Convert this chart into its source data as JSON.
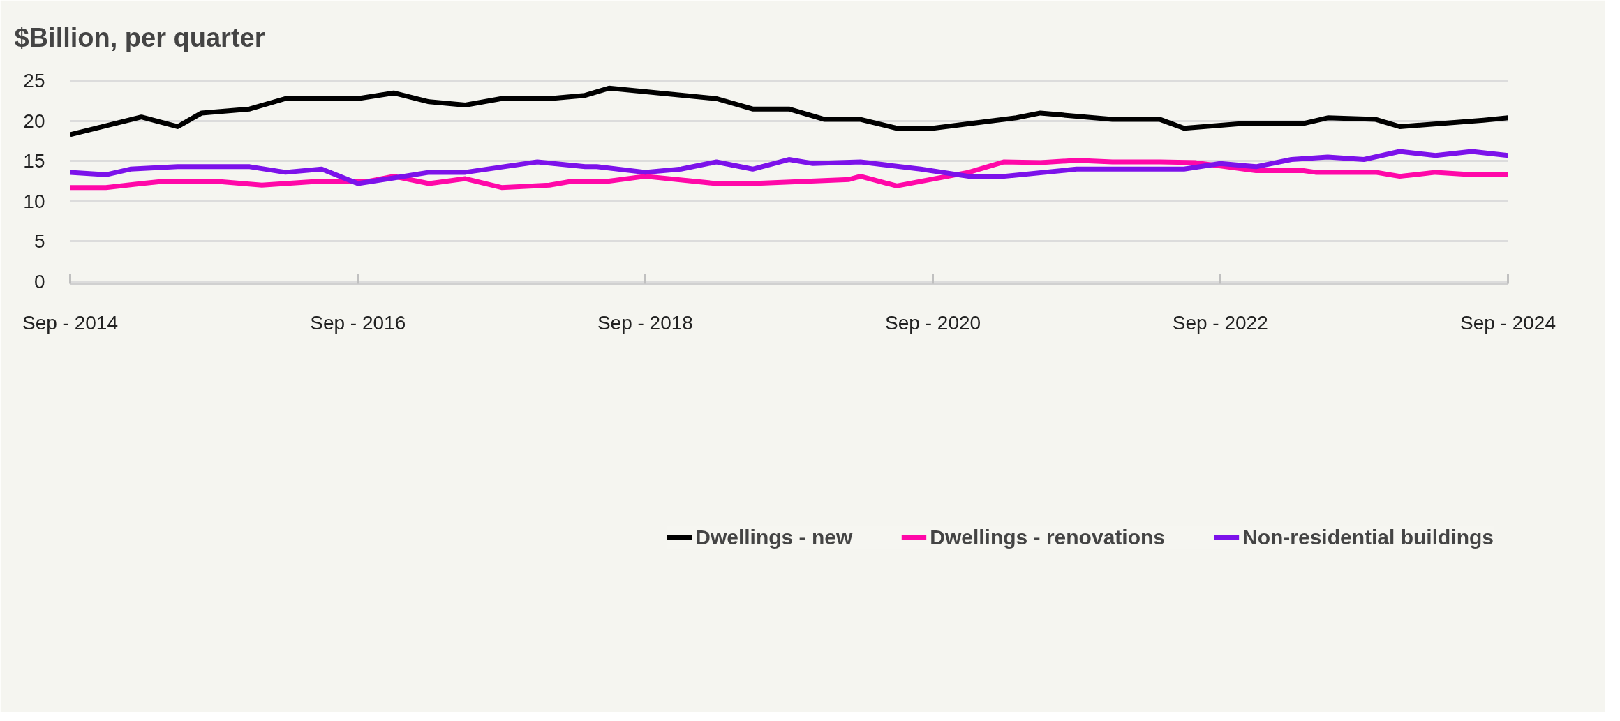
{
  "chart_data": {
    "type": "line",
    "title": "$Billion, per quarter",
    "xlim": [
      "2014-09",
      "2024-09"
    ],
    "xticks": [
      {
        "value": "2014-09",
        "label": "Sep - 2014"
      },
      {
        "value": "2016-09",
        "label": "Sep - 2016"
      },
      {
        "value": "2018-09",
        "label": "Sep - 2018"
      },
      {
        "value": "2020-09",
        "label": "Sep - 2020"
      },
      {
        "value": "2022-09",
        "label": "Sep - 2022"
      },
      {
        "value": "2024-09",
        "label": "Sep - 2024"
      }
    ],
    "ylim": [
      -0.3,
      26
    ],
    "yticks": [
      0,
      5,
      10,
      15,
      20,
      25
    ],
    "grid": "y",
    "legend": "bottom",
    "line_style": "solid",
    "marker": "none",
    "series": [
      {
        "name": "Dwellings - new",
        "color": "#000000",
        "x": [
          "2014-09",
          "2015-03",
          "2015-06",
          "2015-08",
          "2015-12",
          "2016-03",
          "2016-09",
          "2016-12",
          "2017-03",
          "2017-06",
          "2017-09",
          "2018-01",
          "2018-04",
          "2018-06",
          "2019-03",
          "2019-06",
          "2019-09",
          "2019-12",
          "2020-03",
          "2020-06",
          "2020-09",
          "2021-04",
          "2021-06",
          "2021-12",
          "2022-04",
          "2022-06",
          "2022-11",
          "2023-04",
          "2023-06",
          "2023-10",
          "2023-12",
          "2024-07",
          "2024-09"
        ],
        "values": [
          18.3,
          20.5,
          19.3,
          21.0,
          21.5,
          22.8,
          22.8,
          23.5,
          22.4,
          22.0,
          22.8,
          22.8,
          23.2,
          24.1,
          22.8,
          21.5,
          21.5,
          20.2,
          20.2,
          19.1,
          19.1,
          20.4,
          21.0,
          20.2,
          20.2,
          19.1,
          19.7,
          19.7,
          20.4,
          20.2,
          19.3,
          20.1,
          20.4
        ]
      },
      {
        "name": "Dwellings - renovations",
        "color": "#ff08a8",
        "x": [
          "2014-09",
          "2014-12",
          "2015-03",
          "2015-05",
          "2015-09",
          "2016-01",
          "2016-06",
          "2016-10",
          "2016-12",
          "2017-03",
          "2017-06",
          "2017-09",
          "2018-01",
          "2018-03",
          "2018-06",
          "2018-09",
          "2019-03",
          "2019-06",
          "2020-02",
          "2020-03",
          "2020-06",
          "2020-12",
          "2021-03",
          "2021-06",
          "2021-09",
          "2021-12",
          "2022-04",
          "2022-07",
          "2022-12",
          "2023-04",
          "2023-05",
          "2023-10",
          "2023-12",
          "2024-03",
          "2024-06",
          "2024-09"
        ],
        "values": [
          11.7,
          11.7,
          12.2,
          12.5,
          12.5,
          12.0,
          12.5,
          12.5,
          13.1,
          12.2,
          12.8,
          11.7,
          12.0,
          12.5,
          12.5,
          13.1,
          12.2,
          12.2,
          12.7,
          13.1,
          11.9,
          13.6,
          14.9,
          14.8,
          15.1,
          14.9,
          14.9,
          14.8,
          13.8,
          13.8,
          13.6,
          13.6,
          13.1,
          13.6,
          13.3,
          13.3
        ]
      },
      {
        "name": "Non-residential buildings",
        "color": "#7c12ea",
        "x": [
          "2014-09",
          "2014-12",
          "2015-02",
          "2015-06",
          "2015-12",
          "2016-03",
          "2016-06",
          "2016-09",
          "2016-12",
          "2017-03",
          "2017-06",
          "2017-12",
          "2018-04",
          "2018-05",
          "2018-09",
          "2018-12",
          "2019-03",
          "2019-06",
          "2019-09",
          "2019-11",
          "2020-03",
          "2020-08",
          "2020-12",
          "2021-03",
          "2021-09",
          "2022-06",
          "2022-09",
          "2022-12",
          "2023-03",
          "2023-06",
          "2023-09",
          "2023-12",
          "2024-03",
          "2024-06",
          "2024-09"
        ],
        "values": [
          13.6,
          13.3,
          14.0,
          14.3,
          14.3,
          13.6,
          14.0,
          12.2,
          12.9,
          13.6,
          13.6,
          14.9,
          14.3,
          14.3,
          13.6,
          14.0,
          14.9,
          14.0,
          15.2,
          14.7,
          14.9,
          14.0,
          13.1,
          13.1,
          14.0,
          14.0,
          14.7,
          14.3,
          15.2,
          15.5,
          15.2,
          16.2,
          15.7,
          16.2,
          15.7
        ]
      }
    ]
  }
}
